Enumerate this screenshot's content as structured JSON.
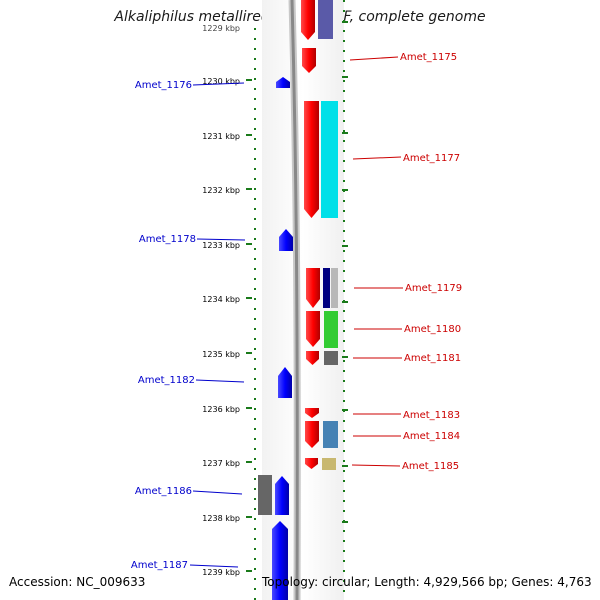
{
  "title": "Alkaliphilus metalliredigens QYMF, complete genome",
  "footer": {
    "accession": "Accession: NC_009633",
    "topology": "Topology: circular; Length: 4,929,566 bp; Genes: 4,763"
  },
  "scale": {
    "ticks": [
      "1229 kbp",
      "1230 kbp",
      "1231 kbp",
      "1232 kbp",
      "1233 kbp",
      "1234 kbp",
      "1235 kbp",
      "1236 kbp",
      "1237 kbp",
      "1238 kbp",
      "1239 kbp"
    ]
  },
  "colors": {
    "forward_cds": "#ff0000",
    "reverse_cds": "#0000ff",
    "forward_label": "#cc0000",
    "reverse_label": "#0000cc",
    "tick": "#1a7a1a",
    "backbone": "#888888"
  },
  "forward_labels": [
    "Amet_1175",
    "Amet_1177",
    "Amet_1179",
    "Amet_1180",
    "Amet_1181",
    "Amet_1183",
    "Amet_1184",
    "Amet_1185"
  ],
  "reverse_labels": [
    "Amet_1176",
    "Amet_1178",
    "Amet_1182",
    "Amet_1186",
    "Amet_1187"
  ]
}
